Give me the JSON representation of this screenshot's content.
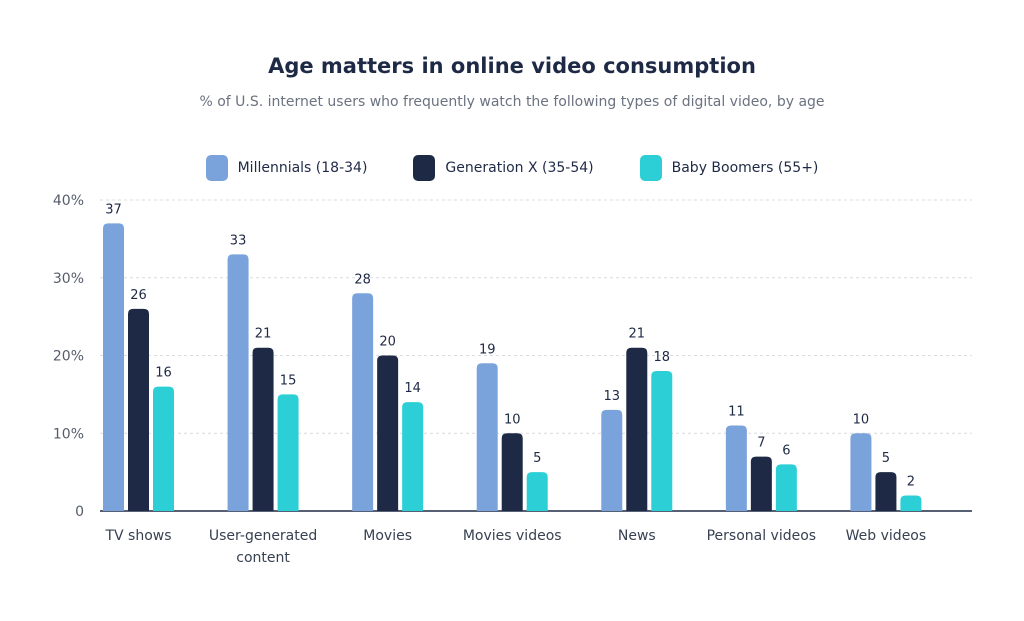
{
  "chart_data": {
    "type": "bar",
    "title": "Age matters in online video consumption",
    "subtitle": "% of U.S. internet users who frequently watch the following types of digital video, by age",
    "categories": [
      [
        "TV shows"
      ],
      [
        "User-generated",
        "content"
      ],
      [
        "Movies"
      ],
      [
        "Movies videos"
      ],
      [
        "News"
      ],
      [
        "Personal videos"
      ],
      [
        "Web videos"
      ]
    ],
    "series": [
      {
        "name": "Millennials (18-34)",
        "color": "#7ba3db",
        "values": [
          37,
          33,
          28,
          19,
          13,
          11,
          10
        ]
      },
      {
        "name": "Generation X (35-54)",
        "color": "#1e2a45",
        "values": [
          26,
          21,
          20,
          10,
          21,
          7,
          5
        ]
      },
      {
        "name": "Baby Boomers (55+)",
        "color": "#2ccfd6",
        "values": [
          16,
          15,
          14,
          5,
          18,
          6,
          2
        ]
      }
    ],
    "ylim": [
      0,
      40
    ],
    "yticks": [
      0,
      10,
      20,
      30,
      40
    ],
    "ytick_labels": [
      "0",
      "10%",
      "20%",
      "30%",
      "40%"
    ],
    "grid": true,
    "legend_position": "top-center"
  }
}
